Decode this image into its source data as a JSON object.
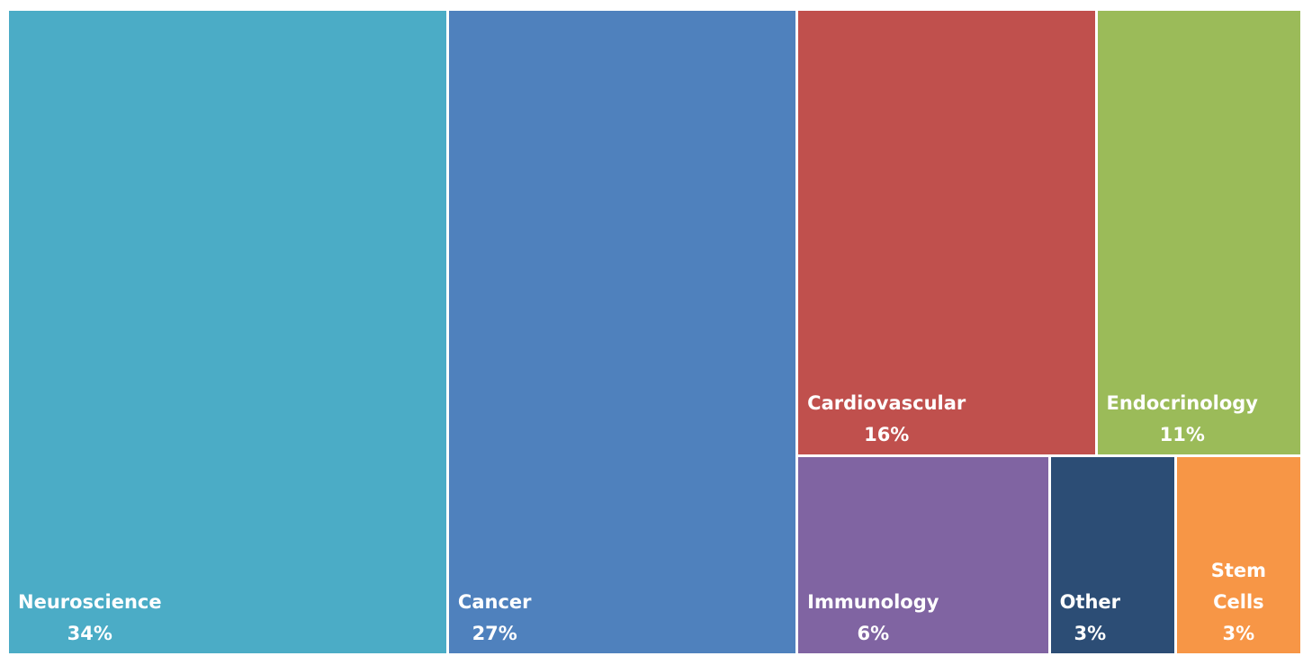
{
  "chart_data": {
    "type": "treemap",
    "categories": [
      "Neuroscience",
      "Cancer",
      "Cardiovascular",
      "Endocrinology",
      "Immunology",
      "Other",
      "Stem Cells"
    ],
    "values": [
      34,
      27,
      16,
      11,
      6,
      3,
      3
    ],
    "value_labels": [
      "34%",
      "27%",
      "16%",
      "11%",
      "6%",
      "3%",
      "3%"
    ],
    "colors": [
      "#4bacc6",
      "#4f81bd",
      "#c0504d",
      "#9bbb59",
      "#8064a2",
      "#2c4d75",
      "#f79646"
    ]
  }
}
